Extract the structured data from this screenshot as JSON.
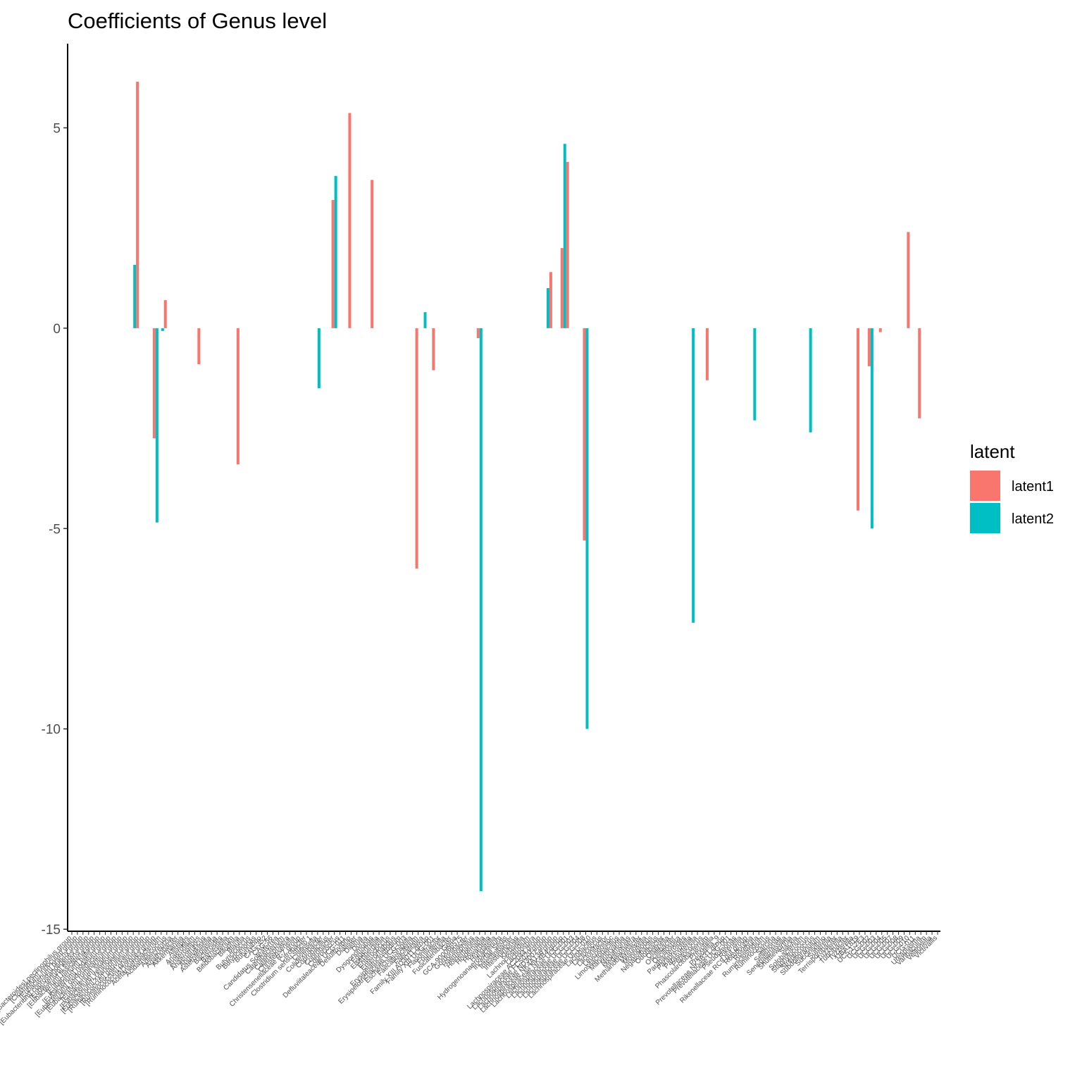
{
  "chart_data": {
    "type": "bar",
    "title": "Coefficients of Genus level",
    "legend_title": "latent",
    "categories": [
      "[Bacteroides] pectinophilus group",
      "[Clostridium] innocuum group",
      "[Eubacterium] brachy group",
      "[Eubacterium] coprostanoligenes group",
      "[Eubacterium] eligens group",
      "[Eubacterium] fissicatena group",
      "[Eubacterium] hallii group",
      "[Eubacterium] nodatum group",
      "[Eubacterium] oxidoreducens group",
      "[Eubacterium] ruminantium group",
      "[Eubacterium] siraeum group",
      "[Eubacterium] ventriosum group",
      "[Eubacterium] xylanophilum group",
      "[Ruminococcus] gauvreauii group",
      "[Ruminococcus] gnavus group",
      "[Ruminococcus] torques group",
      "Acetanaerobacterium",
      "Acidaminococcus",
      "Adlercreutzia",
      "Agathobacter",
      "Akkermansia",
      "Alistipes",
      "Anaerofilum",
      "Anaerostipes",
      "Anaerotruncus",
      "Angelakisella",
      "Asteroleplasma",
      "Bacteroides",
      "Barnesiella",
      "Bifidobacterium",
      "Bilophila",
      "Blautia",
      "Butyricicoccus",
      "Butyricimonas",
      "Butyrivibrio",
      "CAG-352",
      "CAG-56",
      "Candidatus Soleaferrea",
      "Catenibacterium",
      "Catenisphaera",
      "Christensenella",
      "Christensenellaceae R-7 group",
      "Citrobacter",
      "Clostridium sensu stricto 1",
      "Collinsella",
      "Colidextribacter",
      "Coprobacillus",
      "Coprobacter",
      "Coprococcus",
      "Defluviitaleaceae UCG-011",
      "Desulfovibrio",
      "Dialister",
      "Dielma",
      "Dorea",
      "Dysgonomonas",
      "Eggerthella",
      "Eisenbergiella",
      "Enterococcus",
      "Enterorhabdus",
      "Erysipelatoclostridium",
      "Erysipelotrichaceae UCG-003",
      "Escherichia-Shigella",
      "Faecalibacterium",
      "Faecalitalea",
      "Family XIII AD3011 group",
      "Family XIII UCG-001",
      "Flavonifractor",
      "Fournierella",
      "Fusicatenibacter",
      "Gelria",
      "GCA-900066575",
      "Gordonibacter",
      "Haemophilus",
      "Holdemanella",
      "Holdemania",
      "Howardella",
      "Hungatella",
      "Hydrogenoanaerobacterium",
      "Incertae Sedis",
      "Intestinibacter",
      "Intestinimonas",
      "Klebsiella",
      "Lachnoclostridium",
      "Lachnospira",
      "Lachnospiraceae AC2044 group",
      "Lachnospiraceae FCS020 group",
      "Lachnospiraceae ND3007 group",
      "Lachnospiraceae NK4A136 group",
      "Lachnospiraceae NK4B4 group",
      "Lachnospiraceae UCG-001",
      "Lachnospiraceae UCG-003",
      "Lachnospiraceae UCG-004",
      "Lachnospiraceae UCG-008",
      "Lachnospiraceae UCG-010",
      "Lactobacillus",
      "Lactococcus",
      "Lactonifactor",
      "Leuconostoc",
      "Limosilactobacillus",
      "Marvinbryantia",
      "Megamonas",
      "Megasphaera",
      "Methanobrevibacter",
      "Mitsuokella",
      "Monoglobus",
      "Negativibacillus",
      "Odoribacter",
      "Olsenella",
      "Oscillibacter",
      "Oscillospira",
      "Parabacteroides",
      "Paraprevotella",
      "Parasutterella",
      "Peptococcus",
      "Phascolarctobacterium",
      "Prevotella",
      "Prevotella_9",
      "Prevotellaceae NK3B31 group",
      "Prevotellaceae UCG-001",
      "Pseudomonas",
      "Rikenella",
      "Rikenellaceae RC9 gut group",
      "Romboutsia",
      "Roseburia",
      "Ruminiclostridium",
      "Ruminococcus",
      "Sarcina",
      "Sellimonas",
      "Senegalimassilia",
      "Shuttleworthia",
      "Slackia",
      "Solobacterium",
      "Staphylococcus",
      "Streptococcus",
      "Subdoligranulum",
      "Succinivibrio",
      "Sutterella",
      "Terrisporobacter",
      "Tuzzerella",
      "Turicibacter",
      "Tyzzerella",
      "UBA1819",
      "UC5-1-2E3",
      "UCG-002",
      "UCG-003",
      "UCG-004",
      "UCG-005",
      "UCG-007",
      "UCG-008",
      "UCG-009",
      "UCG-010",
      "UCG-011",
      "Ureaplasma",
      "Varibaculum",
      "Veillonella",
      "Victivallis"
    ],
    "series": [
      {
        "name": "latent1",
        "color": "#F8766D",
        "values": [
          null,
          null,
          null,
          null,
          null,
          null,
          null,
          null,
          null,
          null,
          null,
          null,
          6.15,
          null,
          null,
          -2.75,
          null,
          0.7,
          null,
          null,
          null,
          null,
          null,
          -0.9,
          null,
          null,
          null,
          null,
          null,
          null,
          -3.4,
          null,
          null,
          null,
          null,
          null,
          null,
          null,
          null,
          null,
          null,
          null,
          null,
          null,
          null,
          null,
          null,
          3.2,
          null,
          null,
          5.37,
          null,
          null,
          null,
          3.7,
          null,
          null,
          null,
          null,
          null,
          null,
          null,
          -6.0,
          null,
          null,
          -1.05,
          null,
          null,
          null,
          null,
          null,
          null,
          null,
          -0.25,
          null,
          null,
          null,
          null,
          null,
          null,
          null,
          null,
          null,
          null,
          null,
          null,
          1.4,
          null,
          2.0,
          4.15,
          null,
          null,
          -5.3,
          null,
          null,
          null,
          null,
          null,
          null,
          null,
          null,
          null,
          null,
          null,
          null,
          null,
          null,
          null,
          null,
          null,
          null,
          null,
          null,
          null,
          -1.3,
          null,
          null,
          null,
          null,
          null,
          null,
          null,
          null,
          null,
          null,
          null,
          null,
          null,
          null,
          null,
          null,
          null,
          null,
          null,
          null,
          null,
          null,
          null,
          null,
          null,
          null,
          -4.55,
          null,
          -0.95,
          null,
          -0.1,
          null,
          null,
          null,
          null,
          2.4,
          null,
          -2.25,
          null,
          null,
          null
        ]
      },
      {
        "name": "latent2",
        "color": "#00BFC4",
        "values": [
          null,
          null,
          null,
          null,
          null,
          null,
          null,
          null,
          null,
          null,
          null,
          1.58,
          null,
          null,
          null,
          -4.85,
          -0.07,
          null,
          null,
          null,
          null,
          null,
          null,
          null,
          null,
          null,
          null,
          null,
          null,
          null,
          null,
          null,
          null,
          null,
          null,
          null,
          null,
          null,
          null,
          null,
          null,
          null,
          null,
          null,
          -1.5,
          null,
          null,
          3.8,
          null,
          null,
          null,
          null,
          null,
          null,
          null,
          null,
          null,
          null,
          null,
          null,
          null,
          null,
          null,
          0.4,
          null,
          null,
          null,
          null,
          null,
          null,
          null,
          null,
          null,
          -14.05,
          null,
          null,
          null,
          null,
          null,
          null,
          null,
          null,
          null,
          null,
          null,
          1.0,
          null,
          null,
          4.6,
          null,
          null,
          null,
          -10.0,
          null,
          null,
          null,
          null,
          null,
          null,
          null,
          null,
          null,
          null,
          null,
          null,
          null,
          null,
          null,
          null,
          null,
          null,
          -7.35,
          null,
          null,
          null,
          null,
          null,
          null,
          null,
          null,
          null,
          null,
          -2.3,
          null,
          null,
          null,
          null,
          null,
          null,
          null,
          null,
          null,
          -2.6,
          null,
          null,
          null,
          null,
          null,
          null,
          null,
          null,
          null,
          null,
          -5.0,
          null,
          null,
          null,
          null,
          null,
          null,
          null,
          null,
          null,
          null,
          null,
          null
        ]
      }
    ],
    "ylim": [
      -15.05,
      7.1
    ],
    "yticks": [
      -15,
      -10,
      -5,
      0,
      5
    ],
    "grid": false
  }
}
